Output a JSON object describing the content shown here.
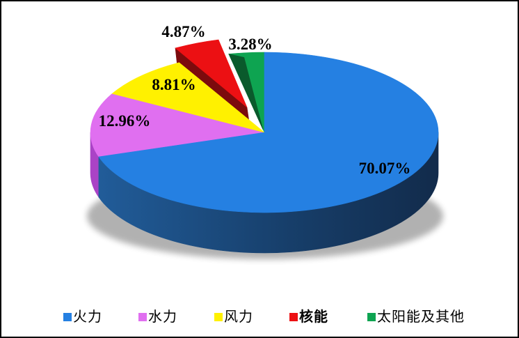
{
  "chart_data": {
    "type": "pie",
    "style": "3d-pie",
    "title": "",
    "start_angle_deg": 0,
    "direction": "clockwise",
    "exploded_slice": "核能",
    "legend_position": "bottom",
    "slices": [
      {
        "key": "thermal",
        "label": "火力",
        "value": 70.07,
        "pct_label": "70.07%",
        "color": "#2580E2",
        "emphasized": false
      },
      {
        "key": "hydro",
        "label": "水力",
        "value": 12.96,
        "pct_label": "12.96%",
        "color": "#E06FF0",
        "emphasized": false
      },
      {
        "key": "wind",
        "label": "风力",
        "value": 8.81,
        "pct_label": "8.81%",
        "color": "#FFF100",
        "emphasized": false
      },
      {
        "key": "nuclear",
        "label": "核能",
        "value": 4.87,
        "pct_label": "4.87%",
        "color": "#EC1013",
        "emphasized": true
      },
      {
        "key": "solar",
        "label": "太阳能及其他",
        "value": 3.28,
        "pct_label": "3.28%",
        "color": "#0EA451",
        "emphasized": false
      }
    ],
    "shade_colors": {
      "thermal_side_left": "#215C99",
      "thermal_side_mid": "#173F6B",
      "thermal_side_right": "#122B4B",
      "hydro_side": "#AA43C6",
      "nuclear_side": "#7C0B0D",
      "solar_side": "#0A5A2C"
    }
  }
}
